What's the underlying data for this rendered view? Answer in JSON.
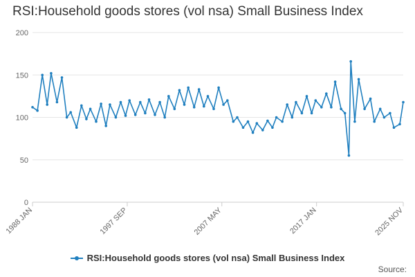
{
  "chart_data": {
    "type": "line",
    "title": "RSI:Household goods stores (vol nsa) Small Business Index",
    "xlabel": "",
    "ylabel": "",
    "ylim": [
      0,
      200
    ],
    "yticks": [
      0,
      50,
      100,
      150,
      200
    ],
    "x_tick_labels": [
      "1988 JAN",
      "1997 SEP",
      "2007 MAY",
      "2017 JAN",
      "2025 NOV"
    ],
    "x_range": [
      "1988 JAN",
      "2025 NOV"
    ],
    "grid": true,
    "legend_position": "bottom",
    "series": [
      {
        "name": "RSI:Household goods stores (vol nsa) Small Business Index",
        "color": "#1f7fbf",
        "x": [
          1988.0,
          1988.5,
          1989.0,
          1989.5,
          1989.9,
          1990.5,
          1991.0,
          1991.5,
          1991.9,
          1992.5,
          1993.0,
          1993.5,
          1993.9,
          1994.5,
          1995.0,
          1995.5,
          1995.9,
          1996.5,
          1997.0,
          1997.5,
          1997.9,
          1998.5,
          1999.0,
          1999.5,
          1999.9,
          2000.5,
          2001.0,
          2001.5,
          2001.9,
          2002.5,
          2003.0,
          2003.5,
          2003.9,
          2004.5,
          2005.0,
          2005.5,
          2005.9,
          2006.5,
          2007.0,
          2007.5,
          2007.9,
          2008.5,
          2008.9,
          2009.5,
          2010.0,
          2010.5,
          2010.9,
          2011.5,
          2012.0,
          2012.5,
          2012.9,
          2013.5,
          2014.0,
          2014.5,
          2014.9,
          2015.5,
          2016.0,
          2016.5,
          2016.9,
          2017.5,
          2018.0,
          2018.5,
          2018.9,
          2019.5,
          2019.9,
          2020.3,
          2020.5,
          2020.9,
          2021.3,
          2021.9,
          2022.5,
          2022.9,
          2023.5,
          2023.9,
          2024.5,
          2024.9,
          2025.5,
          2025.85
        ],
        "values": [
          112,
          108,
          150,
          115,
          152,
          118,
          147,
          100,
          106,
          88,
          114,
          98,
          110,
          95,
          116,
          90,
          115,
          100,
          118,
          102,
          120,
          103,
          118,
          105,
          121,
          103,
          118,
          100,
          125,
          110,
          132,
          115,
          135,
          112,
          133,
          113,
          125,
          110,
          135,
          115,
          120,
          95,
          100,
          88,
          95,
          82,
          93,
          85,
          96,
          88,
          100,
          95,
          115,
          100,
          118,
          105,
          125,
          105,
          120,
          112,
          128,
          112,
          142,
          110,
          105,
          55,
          166,
          95,
          145,
          110,
          122,
          95,
          110,
          100,
          105,
          88,
          92,
          118
        ]
      }
    ]
  }
}
